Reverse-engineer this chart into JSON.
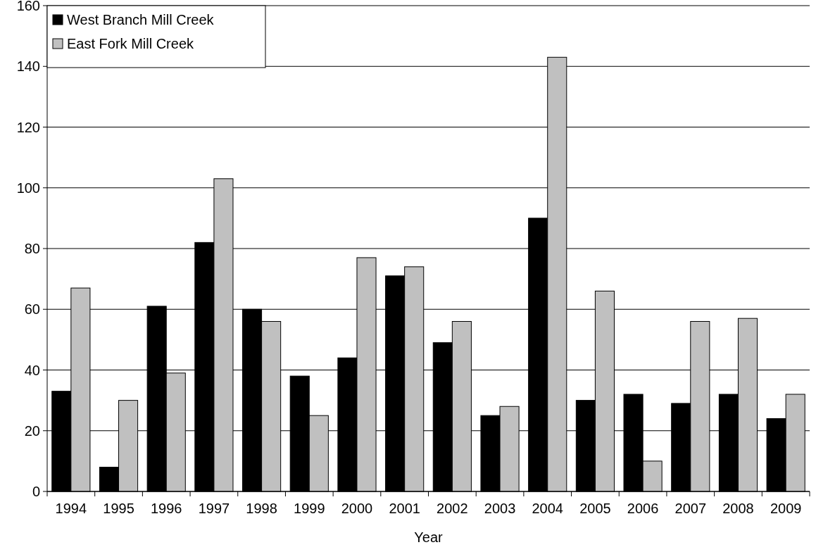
{
  "chart_data": {
    "type": "bar",
    "xlabel": "Year",
    "categories": [
      "1994",
      "1995",
      "1996",
      "1997",
      "1998",
      "1999",
      "2000",
      "2001",
      "2002",
      "2003",
      "2004",
      "2005",
      "2006",
      "2007",
      "2008",
      "2009"
    ],
    "series": [
      {
        "name": "West Branch Mill Creek",
        "color": "#000000",
        "values": [
          33,
          8,
          61,
          82,
          60,
          38,
          44,
          71,
          49,
          25,
          90,
          30,
          32,
          29,
          32,
          24
        ]
      },
      {
        "name": "East Fork Mill Creek",
        "color": "#c0c0c0",
        "values": [
          67,
          30,
          39,
          103,
          56,
          25,
          77,
          74,
          56,
          28,
          143,
          66,
          10,
          56,
          57,
          32
        ]
      }
    ],
    "ylim": [
      0,
      160
    ],
    "yticks": [
      0,
      20,
      40,
      60,
      80,
      100,
      120,
      140,
      160
    ],
    "grid": "y",
    "legend": "top left"
  }
}
